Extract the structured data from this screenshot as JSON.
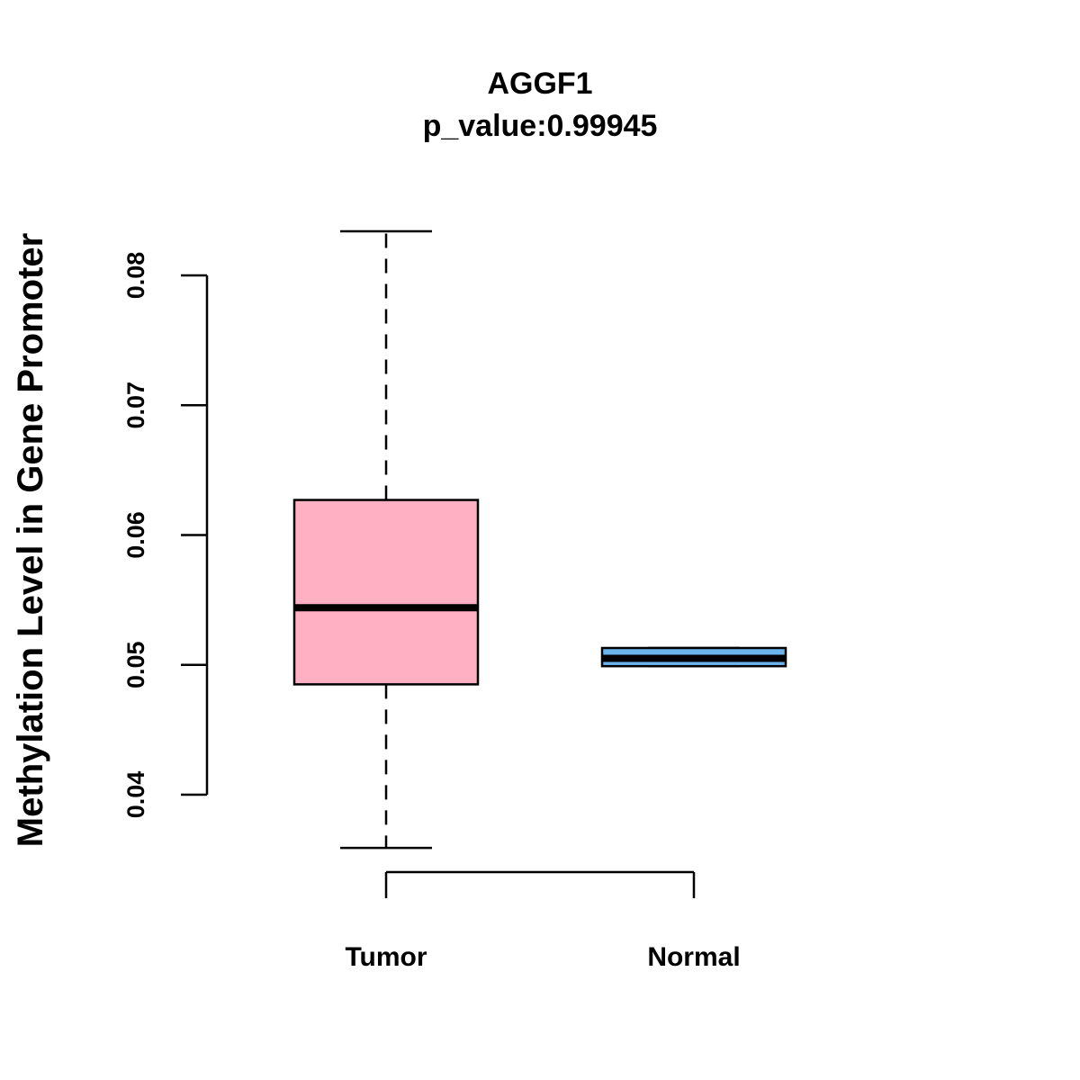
{
  "chart_data": {
    "type": "box",
    "title": "AGGF1",
    "subtitle": "p_value:0.99945",
    "xlabel": "",
    "ylabel": "Methylation Level in Gene Promoter",
    "ylim": [
      0.034,
      0.085
    ],
    "yticks": [
      0.04,
      0.05,
      0.06,
      0.07,
      0.08
    ],
    "ytick_labels": [
      "0.04",
      "0.05",
      "0.06",
      "0.07",
      "0.08"
    ],
    "grid": false,
    "categories": [
      "Tumor",
      "Normal"
    ],
    "boxes": [
      {
        "name": "Tumor",
        "color": "#FFB1C3",
        "whisker_low": 0.0359,
        "q1": 0.0485,
        "median": 0.0544,
        "q3": 0.0627,
        "whisker_high": 0.0834
      },
      {
        "name": "Normal",
        "color": "#6CB4EE",
        "whisker_low": 0.0499,
        "q1": 0.0499,
        "median": 0.0505,
        "q3": 0.0513,
        "whisker_high": 0.0513
      }
    ]
  }
}
